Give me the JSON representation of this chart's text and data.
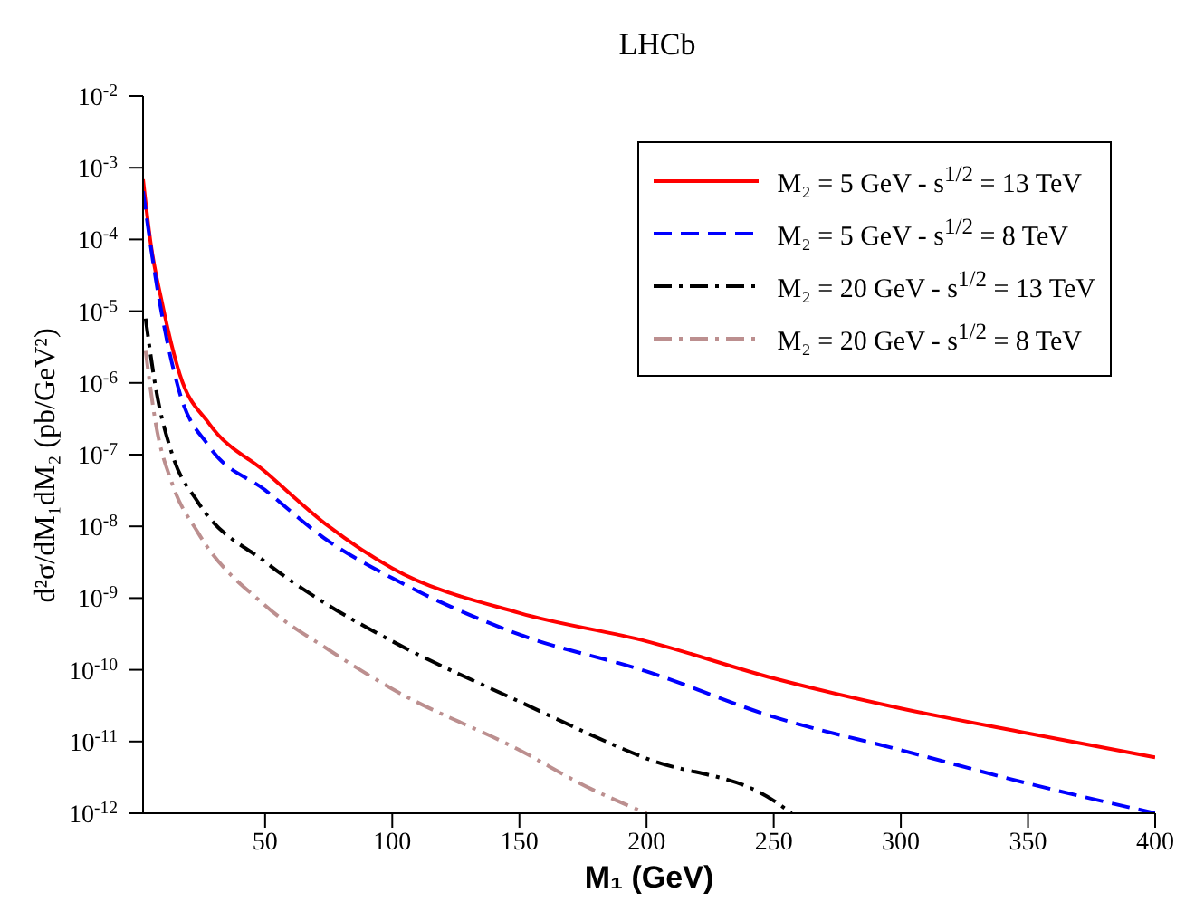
{
  "chart_data": {
    "type": "line",
    "title": "LHCb",
    "xlabel": "M₁  (GeV)",
    "ylabel": "d²σ/dM₁dM₂   (pb/GeV²)",
    "log": "y",
    "xlim": [
      2,
      400
    ],
    "xticks": [
      50,
      100,
      150,
      200,
      250,
      300,
      350,
      400
    ],
    "ylim": [
      1e-12,
      0.01
    ],
    "yticks": [
      {
        "value": 1e-12,
        "label": "10$^{-12}$"
      },
      {
        "value": 1e-11,
        "label": "10$^{-11}$"
      },
      {
        "value": 1e-10,
        "label": "10$^{-10}$"
      },
      {
        "value": 1e-09,
        "label": "10$^{-9}$"
      },
      {
        "value": 1e-08,
        "label": "10$^{-8}$"
      },
      {
        "value": 1e-07,
        "label": "10$^{-7}$"
      },
      {
        "value": 1e-06,
        "label": "10$^{-6}$"
      },
      {
        "value": 1e-05,
        "label": "10$^{-5}$"
      },
      {
        "value": 0.0001,
        "label": "10$^{-4}$"
      },
      {
        "value": 0.001,
        "label": "10$^{-3}$"
      },
      {
        "value": 0.01,
        "label": "10$^{-2}$"
      }
    ],
    "grid": false,
    "legend": "top right",
    "marker": "none",
    "series": [
      {
        "name": "M₂ = 5 GeV  -  s$^{1/2}$ = 13 TeV",
        "color": "#ff0000",
        "line_style": "solid",
        "x": [
          2,
          5,
          9.5,
          16.5,
          28,
          50,
          75,
          100,
          150,
          200,
          250,
          300,
          350,
          400
        ],
        "values": [
          0.00069,
          8.9e-05,
          1.3e-05,
          1.3e-06,
          2.7e-07,
          5.8e-08,
          1e-08,
          2.6e-09,
          6.2e-10,
          2.5e-10,
          7.6e-11,
          2.9e-11,
          1.3e-11,
          6e-12
        ]
      },
      {
        "name": "M₂ = 5 GeV  -  s$^{1/2}$ = 8 TeV",
        "color": "#0000ff",
        "line_style": "dashed",
        "x": [
          2,
          7,
          16.5,
          28,
          50,
          75,
          100,
          150,
          200,
          250,
          300,
          350,
          400
        ],
        "values": [
          0.00047,
          2.8e-05,
          7.1e-07,
          1.3e-07,
          3.2e-08,
          6.2e-09,
          1.9e-09,
          3.1e-10,
          9.5e-11,
          2.2e-11,
          7.6e-12,
          2.6e-12,
          1e-12
        ]
      },
      {
        "name": "M₂ = 20 GeV  -  s$^{1/2}$ = 13 TeV",
        "color": "#000000",
        "line_style": "dashdot",
        "x": [
          3,
          7,
          13.5,
          23.5,
          50,
          75,
          100,
          150,
          200,
          250,
          257
        ],
        "values": [
          7.9e-06,
          8.5e-07,
          1e-07,
          2.2e-08,
          3.2e-09,
          7.9e-10,
          2.5e-10,
          3.6e-11,
          5.8e-12,
          1.5e-12,
          1e-12
        ]
      },
      {
        "name": "M₂ = 20 GeV  -  s$^{1/2}$ = 8 TeV",
        "color": "#bc8f8f",
        "line_style": "dashdot",
        "x": [
          3,
          7,
          13.5,
          23.5,
          50,
          75,
          100,
          150,
          178,
          200
        ],
        "values": [
          2.8e-06,
          2.7e-07,
          3.9e-08,
          8.3e-09,
          7.9e-10,
          1.9e-10,
          5.4e-11,
          7.6e-12,
          2.2e-12,
          1e-12
        ]
      }
    ]
  }
}
